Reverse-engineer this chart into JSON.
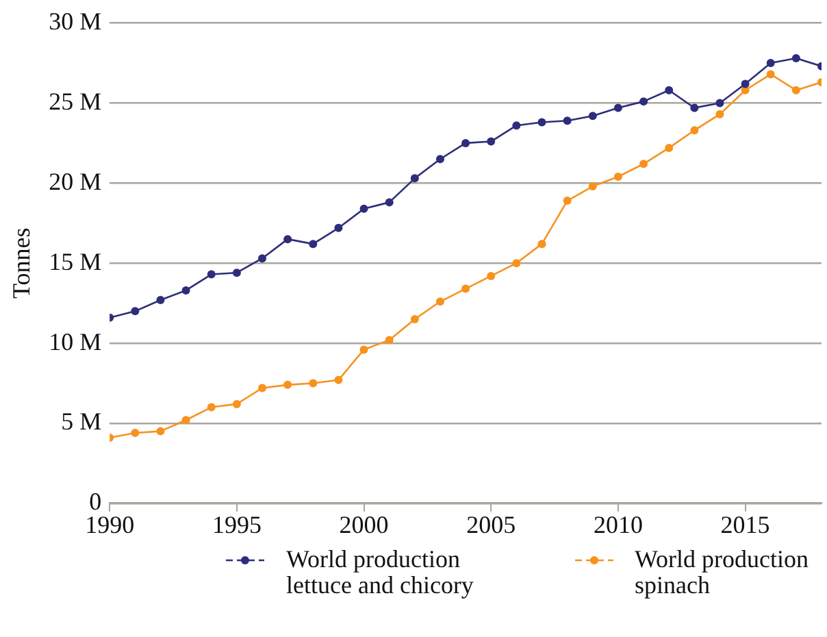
{
  "chart_data": {
    "type": "line",
    "ylabel": "Tonnes",
    "x": [
      1990,
      1991,
      1992,
      1993,
      1994,
      1995,
      1996,
      1997,
      1998,
      1999,
      2000,
      2001,
      2002,
      2003,
      2004,
      2005,
      2006,
      2007,
      2008,
      2009,
      2010,
      2011,
      2012,
      2013,
      2014,
      2015,
      2016,
      2017,
      2018
    ],
    "series": [
      {
        "name": "World production lettuce and chicory",
        "color": "#2e2d7a",
        "values": [
          11600000,
          12000000,
          12700000,
          13300000,
          14300000,
          14400000,
          15300000,
          16500000,
          16200000,
          17200000,
          18400000,
          18800000,
          20300000,
          21500000,
          22500000,
          22600000,
          23600000,
          23800000,
          23900000,
          24200000,
          24700000,
          25100000,
          25800000,
          24700000,
          25000000,
          26200000,
          27500000,
          27800000,
          27300000
        ]
      },
      {
        "name": "World production spinach",
        "color": "#f7921e",
        "values": [
          4100000,
          4400000,
          4500000,
          5200000,
          6000000,
          6200000,
          7200000,
          7400000,
          7500000,
          7700000,
          9600000,
          10200000,
          11500000,
          12600000,
          13400000,
          14200000,
          15000000,
          16200000,
          18900000,
          19800000,
          20400000,
          21200000,
          22200000,
          23300000,
          24300000,
          25800000,
          26800000,
          25800000,
          26300000
        ]
      }
    ],
    "xlim": [
      1990,
      2018
    ],
    "xticks": [
      1990,
      1995,
      2000,
      2005,
      2010,
      2015
    ],
    "ylim": [
      0,
      30000000
    ],
    "yticks": [
      0,
      {
        "value": 5000000,
        "label": "5 M"
      },
      {
        "value": 10000000,
        "label": "10 M"
      },
      {
        "value": 15000000,
        "label": "15 M"
      },
      {
        "value": 20000000,
        "label": "20 M"
      },
      {
        "value": 25000000,
        "label": "25 M"
      },
      {
        "value": 30000000,
        "label": "30 M"
      }
    ],
    "grid": "y",
    "legend": "bottom",
    "marker": "circle",
    "line_style": "solid"
  }
}
